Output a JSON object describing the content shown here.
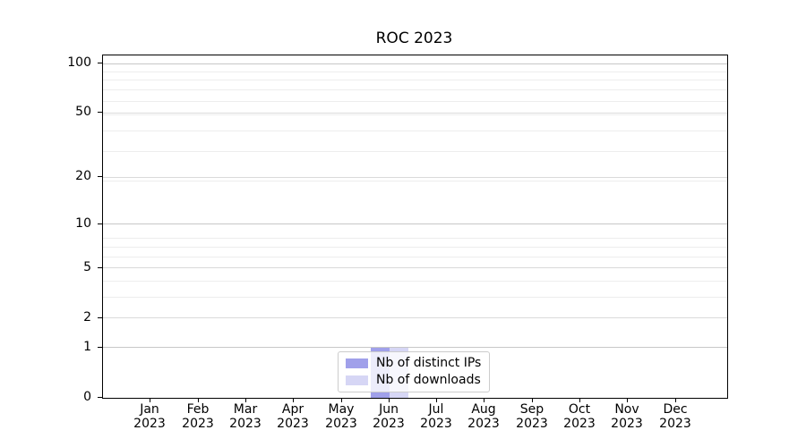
{
  "chart_data": {
    "type": "bar",
    "title": "ROC 2023",
    "categories": [
      "Jan",
      "Feb",
      "Mar",
      "Apr",
      "May",
      "Jun",
      "Jul",
      "Aug",
      "Sep",
      "Oct",
      "Nov",
      "Dec"
    ],
    "category_year": "2023",
    "series": [
      {
        "name": "Nb of distinct IPs",
        "color": "#a0a0ea",
        "values": [
          0,
          0,
          0,
          0,
          0,
          1,
          0,
          0,
          0,
          0,
          0,
          0
        ]
      },
      {
        "name": "Nb of downloads",
        "color": "#d6d6f5",
        "values": [
          0,
          0,
          0,
          0,
          0,
          1,
          0,
          0,
          0,
          0,
          0,
          0
        ]
      }
    ],
    "y_axis": {
      "scale": "log1p",
      "ticks": [
        0,
        1,
        2,
        5,
        10,
        20,
        50,
        100
      ],
      "minor_ticks": [
        3,
        4,
        6,
        7,
        8,
        19,
        29,
        39,
        49,
        59,
        69,
        79,
        89
      ],
      "range": [
        0,
        112
      ]
    },
    "grid": true,
    "legend_position": "lower center",
    "colors": {
      "grid_major": "#c7c7c7",
      "grid_labeled": "#dadada",
      "grid_minor": "#ededed",
      "legend_border": "#cccccc"
    }
  }
}
